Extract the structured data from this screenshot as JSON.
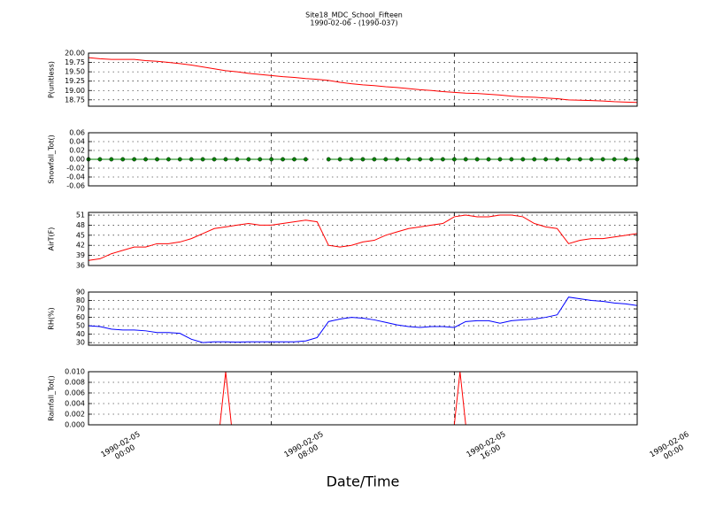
{
  "chart_data": [
    {
      "type": "line",
      "title": "Site18_MDC_School_Fifteen",
      "subtitle": "1990-02-06 - (1990-037)",
      "ylabel": "P(unitless)",
      "color": "#ff0000",
      "grid": true,
      "xlim": [
        "1990-02-05 00:00",
        "1990-02-06 00:00"
      ],
      "x": [
        "1990-02-05 00:00",
        "1990-02-05 00:30",
        "1990-02-05 01:00",
        "1990-02-05 01:30",
        "1990-02-05 02:00",
        "1990-02-05 02:30",
        "1990-02-05 03:00",
        "1990-02-05 03:30",
        "1990-02-05 04:00",
        "1990-02-05 04:30",
        "1990-02-05 05:00",
        "1990-02-05 05:30",
        "1990-02-05 06:00",
        "1990-02-05 06:30",
        "1990-02-05 07:00",
        "1990-02-05 07:30",
        "1990-02-05 08:00",
        "1990-02-05 08:30",
        "1990-02-05 09:00",
        "1990-02-05 09:30",
        "1990-02-05 10:00",
        "1990-02-05 10:30",
        "1990-02-05 11:00",
        "1990-02-05 11:30",
        "1990-02-05 12:00",
        "1990-02-05 12:30",
        "1990-02-05 13:00",
        "1990-02-05 13:30",
        "1990-02-05 14:00",
        "1990-02-05 14:30",
        "1990-02-05 15:00",
        "1990-02-05 15:30",
        "1990-02-05 16:00",
        "1990-02-05 16:30",
        "1990-02-05 17:00",
        "1990-02-05 17:30",
        "1990-02-05 18:00",
        "1990-02-05 18:30",
        "1990-02-05 19:00",
        "1990-02-05 19:30",
        "1990-02-05 20:00",
        "1990-02-05 20:30",
        "1990-02-05 21:00",
        "1990-02-05 21:30",
        "1990-02-05 22:00",
        "1990-02-05 22:30",
        "1990-02-05 23:00",
        "1990-02-05 23:30",
        "1990-02-06 00:00"
      ],
      "values": [
        19.88,
        19.85,
        19.83,
        19.83,
        19.83,
        19.8,
        19.78,
        19.75,
        19.72,
        19.68,
        19.63,
        19.58,
        19.53,
        19.5,
        19.46,
        19.43,
        19.4,
        19.37,
        19.35,
        19.32,
        19.3,
        19.27,
        19.22,
        19.18,
        19.15,
        19.13,
        19.1,
        19.08,
        19.05,
        19.02,
        19.0,
        18.97,
        18.95,
        18.93,
        18.92,
        18.9,
        18.88,
        18.85,
        18.83,
        18.82,
        18.8,
        18.78,
        18.75,
        18.74,
        18.73,
        18.72,
        18.7,
        18.69,
        18.68
      ],
      "ylim": [
        18.58,
        20.0
      ],
      "yticks": [
        {
          "value": 18.75,
          "label": "18.75"
        },
        {
          "value": 19.0,
          "label": "19.00"
        },
        {
          "value": 19.25,
          "label": "19.25"
        },
        {
          "value": 19.5,
          "label": "19.50"
        },
        {
          "value": 19.75,
          "label": "19.75"
        },
        {
          "value": 20.0,
          "label": "20.00"
        }
      ]
    },
    {
      "type": "line",
      "ylabel": "Snowfall_Tot()",
      "color": "#008000",
      "marker": "o",
      "grid": true,
      "xlim": [
        "1990-02-05 00:00",
        "1990-02-06 00:00"
      ],
      "x": [
        "1990-02-05 00:00",
        "1990-02-05 00:30",
        "1990-02-05 01:00",
        "1990-02-05 01:30",
        "1990-02-05 02:00",
        "1990-02-05 02:30",
        "1990-02-05 03:00",
        "1990-02-05 03:30",
        "1990-02-05 04:00",
        "1990-02-05 04:30",
        "1990-02-05 05:00",
        "1990-02-05 05:30",
        "1990-02-05 06:00",
        "1990-02-05 06:30",
        "1990-02-05 07:00",
        "1990-02-05 07:30",
        "1990-02-05 08:00",
        "1990-02-05 08:30",
        "1990-02-05 09:00",
        "1990-02-05 09:30",
        "1990-02-05 10:00",
        "1990-02-05 10:30",
        "1990-02-05 11:00",
        "1990-02-05 11:30",
        "1990-02-05 12:00",
        "1990-02-05 12:30",
        "1990-02-05 13:00",
        "1990-02-05 13:30",
        "1990-02-05 14:00",
        "1990-02-05 14:30",
        "1990-02-05 15:00",
        "1990-02-05 15:30",
        "1990-02-05 16:00",
        "1990-02-05 16:30",
        "1990-02-05 17:00",
        "1990-02-05 17:30",
        "1990-02-05 18:00",
        "1990-02-05 18:30",
        "1990-02-05 19:00",
        "1990-02-05 19:30",
        "1990-02-05 20:00",
        "1990-02-05 20:30",
        "1990-02-05 21:00",
        "1990-02-05 21:30",
        "1990-02-05 22:00",
        "1990-02-05 22:30",
        "1990-02-05 23:00",
        "1990-02-05 23:30",
        "1990-02-06 00:00"
      ],
      "values": [
        0,
        0,
        0,
        0,
        0,
        0,
        0,
        0,
        0,
        0,
        0,
        0,
        0,
        0,
        0,
        0,
        0,
        0,
        0,
        0,
        null,
        0,
        0,
        0,
        0,
        0,
        0,
        0,
        0,
        0,
        0,
        0,
        0,
        0,
        0,
        0,
        0,
        0,
        0,
        0,
        0,
        0,
        0,
        0,
        0,
        0,
        0,
        0,
        0
      ],
      "ylim": [
        -0.06,
        0.06
      ],
      "yticks": [
        -0.06,
        -0.04,
        -0.02,
        {
          "value": 0,
          "label": "0.00"
        },
        0.02,
        0.04,
        0.06
      ]
    },
    {
      "type": "line",
      "ylabel": "AirT(F)",
      "color": "#ff0000",
      "grid": true,
      "xlim": [
        "1990-02-05 00:00",
        "1990-02-06 00:00"
      ],
      "x": [
        "1990-02-05 00:00",
        "1990-02-05 00:30",
        "1990-02-05 01:00",
        "1990-02-05 01:30",
        "1990-02-05 02:00",
        "1990-02-05 02:30",
        "1990-02-05 03:00",
        "1990-02-05 03:30",
        "1990-02-05 04:00",
        "1990-02-05 04:30",
        "1990-02-05 05:00",
        "1990-02-05 05:30",
        "1990-02-05 06:00",
        "1990-02-05 06:30",
        "1990-02-05 07:00",
        "1990-02-05 07:30",
        "1990-02-05 08:00",
        "1990-02-05 08:30",
        "1990-02-05 09:00",
        "1990-02-05 09:30",
        "1990-02-05 10:00",
        "1990-02-05 10:30",
        "1990-02-05 11:00",
        "1990-02-05 11:30",
        "1990-02-05 12:00",
        "1990-02-05 12:30",
        "1990-02-05 13:00",
        "1990-02-05 13:30",
        "1990-02-05 14:00",
        "1990-02-05 14:30",
        "1990-02-05 15:00",
        "1990-02-05 15:30",
        "1990-02-05 16:00",
        "1990-02-05 16:30",
        "1990-02-05 17:00",
        "1990-02-05 17:30",
        "1990-02-05 18:00",
        "1990-02-05 18:30",
        "1990-02-05 19:00",
        "1990-02-05 19:30",
        "1990-02-05 20:00",
        "1990-02-05 20:30",
        "1990-02-05 21:00",
        "1990-02-05 21:30",
        "1990-02-05 22:00",
        "1990-02-05 22:30",
        "1990-02-05 23:00",
        "1990-02-05 23:30",
        "1990-02-06 00:00"
      ],
      "values": [
        37.5,
        38,
        39.5,
        40.5,
        41.5,
        41.5,
        42.5,
        42.5,
        43,
        44,
        45.5,
        47,
        47.5,
        48,
        48.5,
        48,
        48,
        48.5,
        49,
        49.5,
        49,
        42,
        41.5,
        42,
        43,
        43.5,
        45,
        46,
        47,
        47.5,
        48,
        48.5,
        50.5,
        51,
        50.5,
        50.5,
        51,
        51,
        50.5,
        48.5,
        47.5,
        47,
        42.5,
        43.5,
        44,
        44,
        44.5,
        45,
        45.5
      ],
      "ylim": [
        36,
        51.8
      ],
      "yticks": [
        36,
        39,
        42,
        45,
        48,
        51
      ]
    },
    {
      "type": "line",
      "ylabel": "RH(%)",
      "color": "#0000ff",
      "grid": true,
      "xlim": [
        "1990-02-05 00:00",
        "1990-02-06 00:00"
      ],
      "x": [
        "1990-02-05 00:00",
        "1990-02-05 00:30",
        "1990-02-05 01:00",
        "1990-02-05 01:30",
        "1990-02-05 02:00",
        "1990-02-05 02:30",
        "1990-02-05 03:00",
        "1990-02-05 03:30",
        "1990-02-05 04:00",
        "1990-02-05 04:30",
        "1990-02-05 05:00",
        "1990-02-05 05:30",
        "1990-02-05 06:00",
        "1990-02-05 06:30",
        "1990-02-05 07:00",
        "1990-02-05 07:30",
        "1990-02-05 08:00",
        "1990-02-05 08:30",
        "1990-02-05 09:00",
        "1990-02-05 09:30",
        "1990-02-05 10:00",
        "1990-02-05 10:30",
        "1990-02-05 11:00",
        "1990-02-05 11:30",
        "1990-02-05 12:00",
        "1990-02-05 12:30",
        "1990-02-05 13:00",
        "1990-02-05 13:30",
        "1990-02-05 14:00",
        "1990-02-05 14:30",
        "1990-02-05 15:00",
        "1990-02-05 15:30",
        "1990-02-05 16:00",
        "1990-02-05 16:30",
        "1990-02-05 17:00",
        "1990-02-05 17:30",
        "1990-02-05 18:00",
        "1990-02-05 18:30",
        "1990-02-05 19:00",
        "1990-02-05 19:30",
        "1990-02-05 20:00",
        "1990-02-05 20:30",
        "1990-02-05 21:00",
        "1990-02-05 21:30",
        "1990-02-05 22:00",
        "1990-02-05 22:30",
        "1990-02-05 23:00",
        "1990-02-05 23:30",
        "1990-02-06 00:00"
      ],
      "values": [
        50,
        49,
        46,
        45,
        45,
        44,
        42,
        42,
        41,
        34,
        30,
        31,
        31,
        30.5,
        31,
        31,
        31,
        31,
        31,
        32,
        36,
        55,
        58,
        60,
        59,
        57,
        54,
        51,
        49,
        48,
        49,
        49,
        48,
        55,
        56,
        56,
        53,
        56,
        57,
        58,
        60,
        63,
        84,
        82,
        80,
        79,
        77,
        76,
        74
      ],
      "ylim": [
        27,
        90
      ],
      "yticks": [
        30,
        40,
        50,
        60,
        70,
        80,
        90
      ]
    },
    {
      "type": "line",
      "ylabel": "Rainfall_Tot()",
      "xlabel": "Date/Time",
      "color": "#ff0000",
      "grid": true,
      "xlim": [
        "1990-02-05 00:00",
        "1990-02-06 00:00"
      ],
      "x": [
        "1990-02-05 00:00",
        "1990-02-05 05:45",
        "1990-02-05 06:00",
        "1990-02-05 06:15",
        "1990-02-05 16:00",
        "1990-02-05 16:15",
        "1990-02-05 16:30",
        "1990-02-06 00:00"
      ],
      "values": [
        0,
        0,
        0.01,
        0,
        0,
        0.01,
        0,
        0
      ],
      "ylim": [
        0,
        0.01
      ],
      "yticks": [
        {
          "value": 0,
          "label": "0.000"
        },
        {
          "value": 0.002,
          "label": "0.002"
        },
        {
          "value": 0.004,
          "label": "0.004"
        },
        {
          "value": 0.006,
          "label": "0.006"
        },
        {
          "value": 0.008,
          "label": "0.008"
        },
        {
          "value": 0.01,
          "label": "0.010"
        }
      ],
      "xticks": [
        {
          "value": "1990-02-05 00:00",
          "label": "1990-02-05\n00:00"
        },
        {
          "value": "1990-02-05 08:00",
          "label": "1990-02-05\n08:00"
        },
        {
          "value": "1990-02-05 16:00",
          "label": "1990-02-05\n16:00"
        },
        {
          "value": "1990-02-06 00:00",
          "label": "1990-02-06\n00:00"
        }
      ]
    }
  ]
}
